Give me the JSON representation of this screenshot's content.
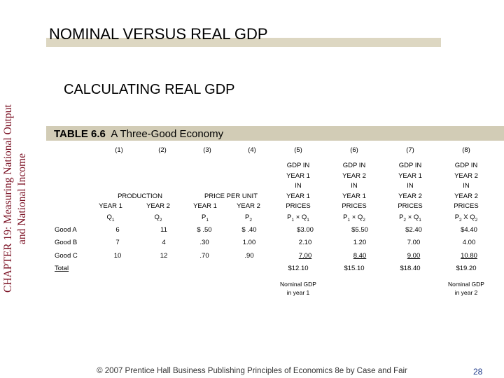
{
  "side_title": {
    "line1": "CHAPTER 19:  Measuring National Output",
    "line2": "and National Income"
  },
  "slide_title": "NOMINAL VERSUS REAL GDP",
  "subtitle": "CALCULATING REAL GDP",
  "table": {
    "label": "TABLE 6.6",
    "name": "A Three-Good Economy",
    "col_numbers": [
      "(1)",
      "(2)",
      "(3)",
      "(4)",
      "(5)",
      "(6)",
      "(7)",
      "(8)"
    ],
    "group_production": "PRODUCTION",
    "group_price": "PRICE PER UNIT",
    "year1": "YEAR 1",
    "year2": "YEAR 2",
    "q1": "Q",
    "q2": "Q",
    "p1": "P",
    "p2": "P",
    "sub1": "1",
    "sub2": "2",
    "gdp_headers": [
      [
        "GDP IN",
        "YEAR 1",
        "IN",
        "YEAR 1",
        "PRICES"
      ],
      [
        "GDP IN",
        "YEAR 2",
        "IN",
        "YEAR 1",
        "PRICES"
      ],
      [
        "GDP IN",
        "YEAR 1",
        "IN",
        "YEAR 2",
        "PRICES"
      ],
      [
        "GDP IN",
        "YEAR 2",
        "IN",
        "YEAR 2",
        "PRICES"
      ]
    ],
    "formula_times": "×",
    "formula_x": "X",
    "rows": [
      {
        "good": "Good A",
        "cells": [
          "6",
          "11",
          "$ .50",
          "$ .40",
          "$3.00",
          "$5.50",
          "$2.40",
          "$4.40"
        ]
      },
      {
        "good": "Good B",
        "cells": [
          "7",
          "4",
          ".30",
          "1.00",
          "2.10",
          "1.20",
          "7.00",
          "4.00"
        ]
      },
      {
        "good": "Good C",
        "cells": [
          "10",
          "12",
          ".70",
          ".90",
          "7.00",
          "8.40",
          "9.00",
          "10.80"
        ]
      }
    ],
    "total_label": "Total",
    "totals": [
      "$12.10",
      "$15.10",
      "$18.40",
      "$19.20"
    ],
    "note_nominal_y1": [
      "Nominal GDP",
      "in year 1"
    ],
    "note_nominal_y2": [
      "Nominal GDP",
      "in year 2"
    ]
  },
  "footer": "© 2007 Prentice Hall Business Publishing   Principles of Economics 8e by Case and Fair",
  "page_number": "28"
}
